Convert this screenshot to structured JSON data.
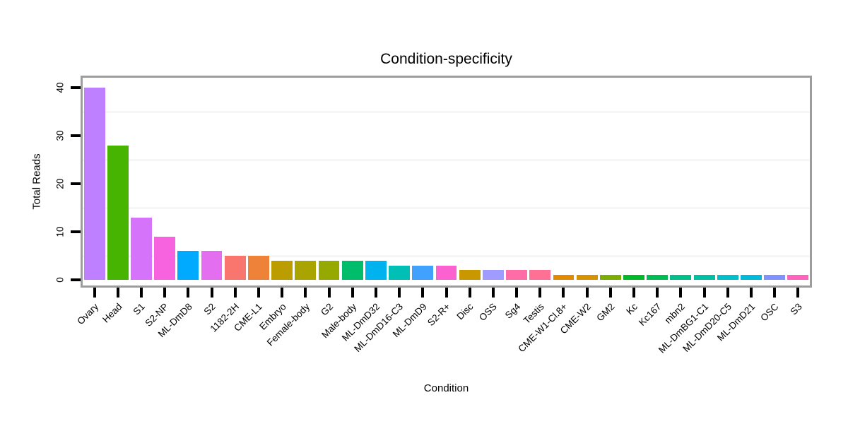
{
  "title": "Condition-specificity",
  "chart_data": {
    "type": "bar",
    "title": "Condition-specificity",
    "xlabel": "Condition",
    "ylabel": "Total Reads",
    "ylim": [
      0,
      42
    ],
    "yticks": [
      0,
      10,
      20,
      30,
      40
    ],
    "ytick_labels": [
      "0",
      "10",
      "20",
      "30",
      "40"
    ],
    "minor_gridlines_y": [
      5,
      15,
      25,
      35
    ],
    "grid": "minor horizontal only, very faint",
    "legend": "none",
    "categories": [
      "Ovary",
      "Head",
      "S1",
      "S2-NP",
      "ML-DmD8",
      "S2",
      "1182-2H",
      "CME-L1",
      "Embryo",
      "Female-body",
      "G2",
      "Male-body",
      "ML-DmD32",
      "ML-DmD16-C3",
      "ML-DmD9",
      "S2-R+",
      "Disc",
      "OSS",
      "Sg4",
      "Testis",
      "CME-W1-Cl.8+",
      "CME-W2",
      "GM2",
      "Kc",
      "Kc167",
      "mbn2",
      "ML-DmBG1-C1",
      "ML-DmD20-C5",
      "ML-DmD21",
      "OSC",
      "S3"
    ],
    "values": [
      40,
      28,
      13,
      9,
      6,
      6,
      5,
      5,
      4,
      4,
      4,
      4,
      4,
      3,
      3,
      3,
      2,
      2,
      2,
      2,
      1,
      1,
      1,
      1,
      1,
      1,
      1,
      1,
      1,
      1,
      1
    ],
    "bar_colors": [
      "#BE80FF",
      "#46B400",
      "#D574FB",
      "#F763DF",
      "#00AAFF",
      "#E36EF0",
      "#F8766D",
      "#EF8239",
      "#BB9D00",
      "#A9A400",
      "#95A900",
      "#00BD6C",
      "#00B3EE",
      "#00C0B6",
      "#41A1FF",
      "#FC61D0",
      "#C99800",
      "#A09BFE",
      "#FF6CA6",
      "#FF7194",
      "#E28A00",
      "#D89200",
      "#7CAE00",
      "#00B929",
      "#00BC55",
      "#00BF89",
      "#00C0A4",
      "#00BECB",
      "#00BADB",
      "#7E93FF",
      "#FF63BE"
    ]
  },
  "colors": {
    "panel_border": "#9d9d9d",
    "minor_gridline": "#f6f6f6",
    "tick": "#000000",
    "text": "#000000",
    "background": "#ffffff"
  }
}
